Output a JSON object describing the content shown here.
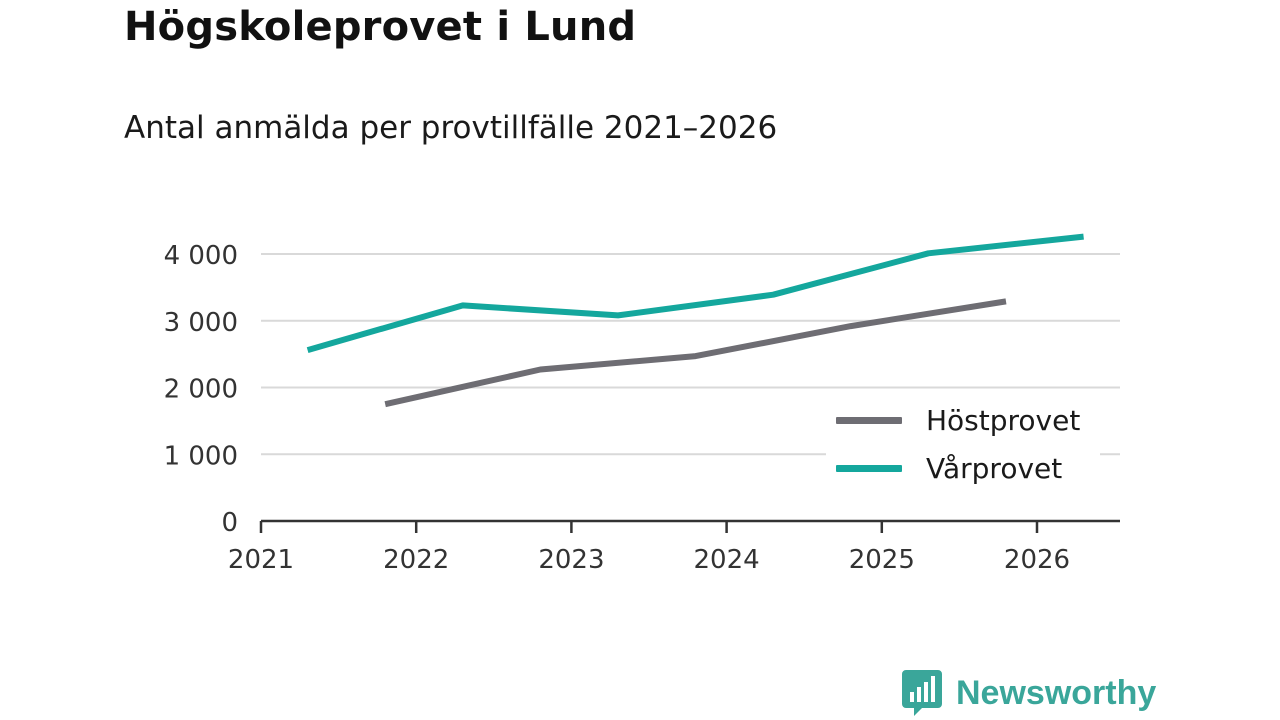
{
  "title": "Högskoleprovet i Lund",
  "subtitle": "Antal anmälda per provtillfälle 2021–2026",
  "logo": {
    "text": "Newsworthy",
    "icon": "newsworthy-chat-bars-icon"
  },
  "colors": {
    "host": "#6e6d73",
    "var": "#14a79d",
    "grid": "#d9d9d9",
    "axis": "#333333",
    "brand": "#3aa69a"
  },
  "chart_data": {
    "type": "line",
    "title": "Högskoleprovet i Lund",
    "subtitle": "Antal anmälda per provtillfälle 2021–2026",
    "xlabel": "",
    "ylabel": "",
    "xlim": [
      2021,
      2026.55
    ],
    "ylim": [
      0,
      4300
    ],
    "x_ticks": [
      2021,
      2022,
      2023,
      2024,
      2025,
      2026
    ],
    "x_tick_labels": [
      "2021",
      "2022",
      "2023",
      "2024",
      "2025",
      "2026"
    ],
    "y_ticks": [
      0,
      1000,
      2000,
      3000,
      4000
    ],
    "y_tick_labels": [
      "0",
      "1 000",
      "2 000",
      "3 000",
      "4 000"
    ],
    "grid": true,
    "legend_position": "bottom-right",
    "series": [
      {
        "name": "Höstprovet",
        "color": "#6e6d73",
        "x": [
          2021.8,
          2022.8,
          2023.8,
          2024.8,
          2025.8
        ],
        "values": [
          1750,
          2270,
          2470,
          2920,
          3290
        ]
      },
      {
        "name": "Vårprovet",
        "color": "#14a79d",
        "x": [
          2021.3,
          2022.3,
          2023.3,
          2024.3,
          2025.3,
          2026.3
        ],
        "values": [
          2560,
          3230,
          3080,
          3390,
          4010,
          4260
        ]
      }
    ]
  }
}
